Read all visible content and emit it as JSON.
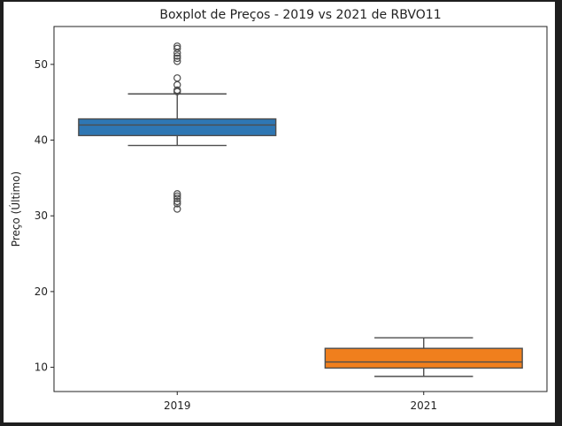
{
  "chart_data": {
    "type": "boxplot",
    "title": "Boxplot de Preços - 2019 vs 2021 de RBVO11",
    "xlabel": "",
    "ylabel": "Preço (Último)",
    "categories": [
      "2019",
      "2021"
    ],
    "ylim": [
      6.8,
      55.0
    ],
    "yticks": [
      10,
      20,
      30,
      40,
      50
    ],
    "grid": false,
    "boxes": [
      {
        "category": "2019",
        "color": "#2e77b4",
        "whisker_low": 39.3,
        "q1": 40.6,
        "median": 42.0,
        "q3": 42.8,
        "whisker_high": 46.1,
        "outliers": [
          46.4,
          46.6,
          47.3,
          48.2,
          50.4,
          50.8,
          51.1,
          51.5,
          52.1,
          52.4,
          32.9,
          32.6,
          32.3,
          31.9,
          31.6,
          30.9
        ]
      },
      {
        "category": "2021",
        "color": "#f07f1d",
        "whisker_low": 8.8,
        "q1": 9.9,
        "median": 10.7,
        "q3": 12.5,
        "whisker_high": 13.9,
        "outliers": []
      }
    ]
  }
}
